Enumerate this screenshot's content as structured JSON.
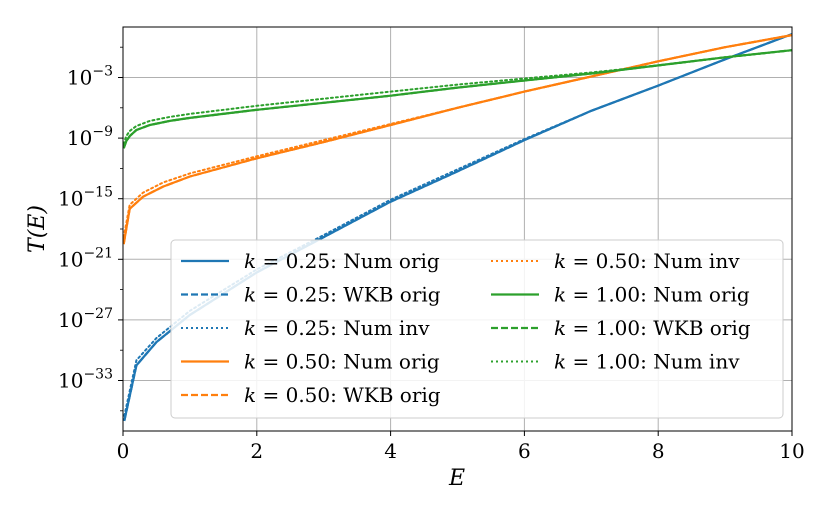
{
  "chart_data": {
    "type": "line",
    "xlabel": "E",
    "ylabel": "T(E)",
    "xlim": [
      0,
      10
    ],
    "ylim_log10": [
      -38,
      2
    ],
    "x_ticks": [
      0,
      2,
      4,
      6,
      8,
      10
    ],
    "x_tick_labels": [
      "0",
      "2",
      "4",
      "6",
      "8",
      "10"
    ],
    "y_ticks_log10": [
      -33,
      -27,
      -21,
      -15,
      -9,
      -3
    ],
    "y_tick_labels": [
      "10",
      "10",
      "10",
      "10",
      "10",
      "10"
    ],
    "y_tick_exponents": [
      "−33",
      "−27",
      "−21",
      "−15",
      "−9",
      "−3"
    ],
    "grid": true,
    "legend_position": "lower-right",
    "colors": {
      "k025": "#1f77b4",
      "k050": "#ff7f0e",
      "k100": "#2ca02c"
    },
    "series": [
      {
        "name": "k = 0.25: Num orig",
        "k": "0.25",
        "label": "Num orig",
        "style": "solid",
        "color": "#1f77b4",
        "x": [
          0.02,
          0.2,
          0.5,
          1,
          2,
          3,
          4,
          5,
          6,
          7,
          8,
          9,
          10
        ],
        "log10_y": [
          -37,
          -31.5,
          -29.2,
          -26.5,
          -22.3,
          -18.8,
          -15.3,
          -12.3,
          -9.2,
          -6.3,
          -3.8,
          -1.2,
          1.3
        ]
      },
      {
        "name": "k = 0.25: WKB orig",
        "k": "0.25",
        "label": "WKB orig",
        "style": "dashed",
        "color": "#1f77b4",
        "x": [
          0.02,
          0.2,
          0.5,
          1,
          2,
          3,
          4,
          5,
          6,
          7,
          8,
          9,
          10
        ],
        "log10_y": [
          -37,
          -31.5,
          -29.2,
          -26.5,
          -22.3,
          -18.8,
          -15.3,
          -12.3,
          -9.2,
          -6.3,
          -3.8,
          -1.2,
          1.3
        ]
      },
      {
        "name": "k = 0.25: Num inv",
        "k": "0.25",
        "label": "Num inv",
        "style": "dotted",
        "color": "#1f77b4",
        "x": [
          0.02,
          0.2,
          0.5,
          1,
          2,
          3,
          4,
          5,
          6,
          7,
          8,
          9,
          10
        ],
        "log10_y": [
          -36.5,
          -31,
          -28.8,
          -26.1,
          -22,
          -18.6,
          -15.1,
          -12.1,
          -9.1,
          -6.3,
          -3.8,
          -1.2,
          1.3
        ]
      },
      {
        "name": "k = 0.50: Num orig",
        "k": "0.50",
        "label": "Num orig",
        "style": "solid",
        "color": "#ff7f0e",
        "x": [
          0.01,
          0.1,
          0.3,
          0.6,
          1,
          2,
          3,
          4,
          5,
          6,
          7,
          8,
          9,
          10
        ],
        "log10_y": [
          -19.5,
          -16,
          -14.8,
          -13.8,
          -12.8,
          -11,
          -9.4,
          -7.7,
          -6,
          -4.4,
          -2.9,
          -1.4,
          0,
          1.2
        ]
      },
      {
        "name": "k = 0.50: WKB orig",
        "k": "0.50",
        "label": "WKB orig",
        "style": "dashed",
        "color": "#ff7f0e",
        "x": [
          0.01,
          0.1,
          0.3,
          0.6,
          1,
          2,
          3,
          4,
          5,
          6,
          7,
          8,
          9,
          10
        ],
        "log10_y": [
          -19.5,
          -16,
          -14.8,
          -13.8,
          -12.8,
          -11,
          -9.4,
          -7.7,
          -6,
          -4.4,
          -2.9,
          -1.4,
          0,
          1.2
        ]
      },
      {
        "name": "k = 0.50: Num inv",
        "k": "0.50",
        "label": "Num inv",
        "style": "dotted",
        "color": "#ff7f0e",
        "x": [
          0.01,
          0.1,
          0.3,
          0.6,
          1,
          2,
          3,
          4,
          5,
          6,
          7,
          8,
          9,
          10
        ],
        "log10_y": [
          -18.8,
          -15.6,
          -14.4,
          -13.4,
          -12.5,
          -10.8,
          -9.2,
          -7.6,
          -6,
          -4.4,
          -2.9,
          -1.4,
          0,
          1.2
        ]
      },
      {
        "name": "k = 1.00: Num orig",
        "k": "1.00",
        "label": "Num orig",
        "style": "solid",
        "color": "#2ca02c",
        "x": [
          0.01,
          0.05,
          0.1,
          0.2,
          0.4,
          0.7,
          1,
          2,
          3,
          4,
          5,
          6,
          7,
          8,
          9,
          10
        ],
        "log10_y": [
          -10,
          -9.3,
          -8.8,
          -8.2,
          -7.7,
          -7.3,
          -7,
          -6.2,
          -5.5,
          -4.8,
          -4,
          -3.3,
          -2.6,
          -1.8,
          -1,
          -0.3
        ]
      },
      {
        "name": "k = 1.00: WKB orig",
        "k": "1.00",
        "label": "WKB orig",
        "style": "dashed",
        "color": "#2ca02c",
        "x": [
          0.01,
          0.05,
          0.1,
          0.2,
          0.4,
          0.7,
          1,
          2,
          3,
          4,
          5,
          6,
          7,
          8,
          9,
          10
        ],
        "log10_y": [
          -10,
          -9.3,
          -8.8,
          -8.2,
          -7.7,
          -7.3,
          -7,
          -6.2,
          -5.5,
          -4.8,
          -4,
          -3.3,
          -2.6,
          -1.8,
          -1,
          -0.3
        ]
      },
      {
        "name": "k = 1.00: Num inv",
        "k": "1.00",
        "label": "Num inv",
        "style": "dotted",
        "color": "#2ca02c",
        "x": [
          0.01,
          0.05,
          0.1,
          0.2,
          0.4,
          0.7,
          1,
          2,
          3,
          4,
          5,
          6,
          7,
          8,
          9,
          10
        ],
        "log10_y": [
          -9.6,
          -8.8,
          -8.3,
          -7.8,
          -7.3,
          -6.9,
          -6.6,
          -5.8,
          -5.1,
          -4.4,
          -3.7,
          -3.1,
          -2.5,
          -1.8,
          -1,
          -0.3
        ]
      }
    ]
  }
}
